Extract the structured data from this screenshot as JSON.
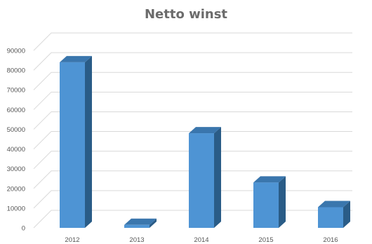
{
  "chart_data": {
    "type": "bar",
    "title": "Netto winst",
    "xlabel": "",
    "ylabel": "",
    "categories": [
      "2012",
      "2013",
      "2014",
      "2015",
      "2016"
    ],
    "values": [
      84000,
      1500,
      48000,
      23000,
      10500
    ],
    "ylim": [
      0,
      90000
    ],
    "yticks": [
      0,
      10000,
      20000,
      30000,
      40000,
      50000,
      60000,
      70000,
      80000,
      90000
    ],
    "grid": true,
    "legend": "none",
    "colors": {
      "bar_front": "#4e94d4",
      "bar_side": "#2a5c87",
      "bar_top": "#3a76ad",
      "grid": "#d9d9d9"
    }
  }
}
